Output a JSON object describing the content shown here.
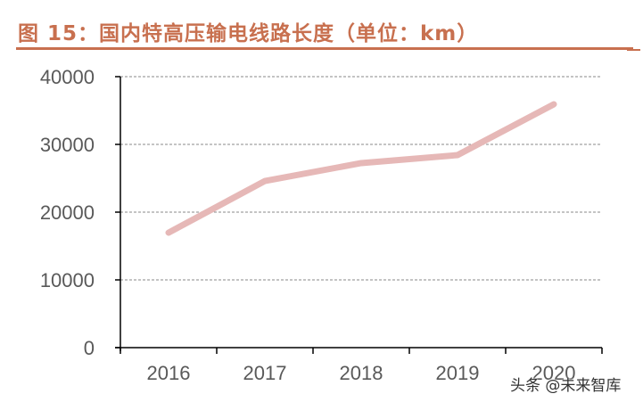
{
  "header": {
    "title": "图 15：国内特高压输电线路长度（单位：km）"
  },
  "watermark": "头条 @未来智库",
  "colors": {
    "title": "#c8704f",
    "line": "#e6b8b7",
    "axis": "#000000",
    "grid": "#888888",
    "tick_text": "#595959"
  },
  "chart_data": {
    "type": "line",
    "title": "国内特高压输电线路长度（单位：km）",
    "xlabel": "",
    "ylabel": "km",
    "categories": [
      "2016",
      "2017",
      "2018",
      "2019",
      "2020"
    ],
    "series": [
      {
        "name": "特高压输电线路长度",
        "values": [
          16970,
          24600,
          27240,
          28420,
          35920
        ]
      }
    ],
    "ylim": [
      0,
      40000
    ],
    "yticks": [
      "0",
      "10000",
      "20000",
      "30000",
      "40000"
    ],
    "grid": true,
    "grid_style": "dashed",
    "legend": "none"
  }
}
